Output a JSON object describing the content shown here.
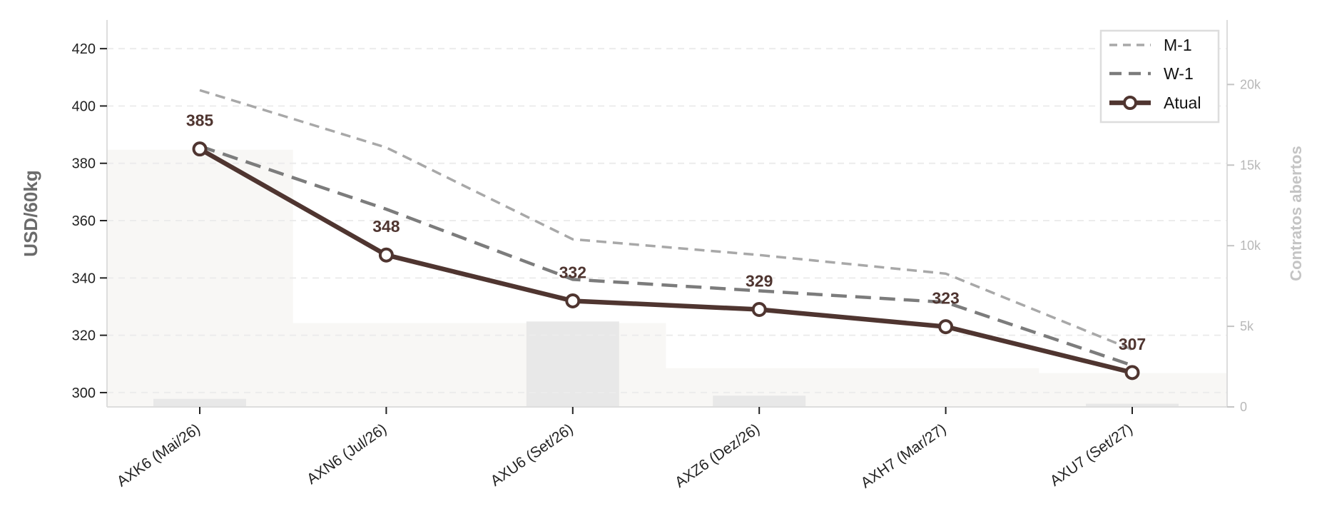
{
  "chart_data": {
    "type": "line",
    "categories": [
      "AXK6 (Mai/26)",
      "AXN6 (Jul/26)",
      "AXU6 (Set/26)",
      "AXZ6 (Dez/26)",
      "AXH7 (Mar/27)",
      "AXU7 (Set/27)"
    ],
    "ylabel": "USD/60kg",
    "y2label": "Contratos abertos",
    "ylim": [
      295,
      430
    ],
    "yticks": [
      300,
      320,
      340,
      360,
      380,
      400,
      420
    ],
    "y2lim": [
      0,
      24000
    ],
    "y2ticks": [
      0,
      5000,
      10000,
      15000,
      20000
    ],
    "y2ticklabels": [
      "0",
      "5k",
      "10k",
      "15k",
      "20k"
    ],
    "grid": "horizontal dashed",
    "legend_position": "top-right",
    "series": [
      {
        "name": "M-1",
        "style": "dashed light gray",
        "color": "#a8a8a8",
        "values": [
          405.5,
          385.5,
          353.5,
          348,
          341.5,
          315
        ]
      },
      {
        "name": "W-1",
        "style": "dashed gray",
        "color": "#7c7c7c",
        "values": [
          386,
          364,
          339.5,
          335.5,
          331.5,
          309.5
        ]
      },
      {
        "name": "Atual",
        "style": "solid with markers",
        "color": "#4f3530",
        "values": [
          385,
          348,
          332,
          329,
          323,
          307
        ],
        "data_labels": [
          "385",
          "348",
          "332",
          "329",
          "323",
          "307"
        ]
      }
    ],
    "bars": {
      "name": "Contratos abertos",
      "axis": "right",
      "color": "#e8e8e8",
      "values": [
        500,
        0,
        5300,
        700,
        0,
        200
      ]
    },
    "background_area": {
      "axis": "right",
      "color": "#f8f7f5",
      "values": [
        15950,
        5200,
        5200,
        2400,
        2400,
        2100
      ]
    }
  }
}
